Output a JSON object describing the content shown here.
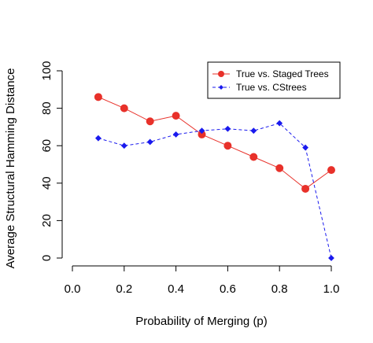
{
  "chart_data": {
    "type": "line",
    "title": "",
    "xlabel": "Probability of Merging (p)",
    "ylabel": "Average Structural Hamming Distance",
    "xlim": [
      0.0,
      1.0
    ],
    "ylim": [
      0,
      100
    ],
    "x_ticks": [
      "0.0",
      "0.2",
      "0.4",
      "0.6",
      "0.8",
      "1.0"
    ],
    "y_ticks": [
      "0",
      "20",
      "40",
      "60",
      "80",
      "100"
    ],
    "grid": false,
    "legend_position": "top-right",
    "x": [
      0.1,
      0.2,
      0.3,
      0.4,
      0.5,
      0.6,
      0.7,
      0.8,
      0.9,
      1.0
    ],
    "series": [
      {
        "name": "True vs. Staged Trees",
        "color": "#e8312a",
        "line_style": "solid",
        "marker": "circle",
        "values": [
          86,
          80,
          73,
          76,
          66,
          60,
          54,
          48,
          37,
          47
        ]
      },
      {
        "name": "True vs. CStrees",
        "color": "#1a1aee",
        "line_style": "dashed",
        "marker": "diamond",
        "values": [
          64,
          60,
          62,
          66,
          68,
          69,
          68,
          72,
          59,
          0
        ]
      }
    ]
  }
}
